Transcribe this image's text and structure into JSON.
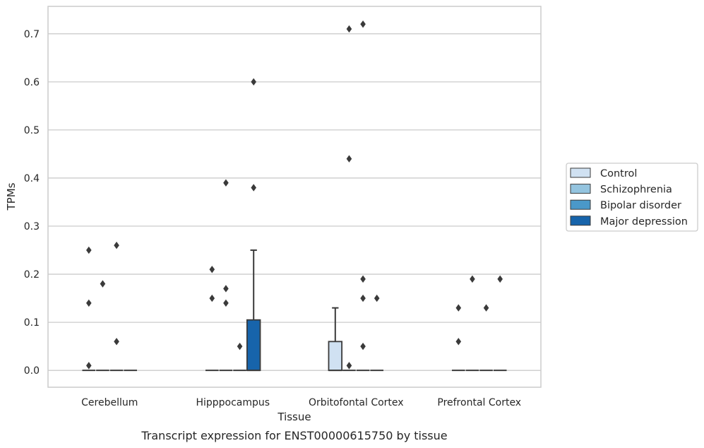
{
  "caption": "Transcript expression for ENST00000615750 by tissue",
  "chart_data": {
    "type": "box",
    "xlabel": "Tissue",
    "ylabel": "TPMs",
    "ylim": [
      -0.035,
      0.757
    ],
    "yticks": [
      0.0,
      0.1,
      0.2,
      0.3,
      0.4,
      0.5,
      0.6,
      0.7
    ],
    "ytick_labels": [
      "0.0",
      "0.1",
      "0.2",
      "0.3",
      "0.4",
      "0.5",
      "0.6",
      "0.7"
    ],
    "grid": "horizontal",
    "legend_position": "right",
    "categories": [
      "Cerebellum",
      "Hipppocampus",
      "Orbitofontal Cortex",
      "Prefrontal Cortex"
    ],
    "series": [
      {
        "name": "Control",
        "color": "#d0e1f2",
        "boxes": [
          {
            "category": "Cerebellum",
            "q1": 0.0,
            "median": 0.0,
            "q3": 0.0,
            "whisker_low": 0.0,
            "whisker_high": 0.0,
            "outliers": [
              0.25,
              0.14,
              0.01
            ]
          },
          {
            "category": "Hipppocampus",
            "q1": 0.0,
            "median": 0.0,
            "q3": 0.0,
            "whisker_low": 0.0,
            "whisker_high": 0.0,
            "outliers": [
              0.21,
              0.15
            ]
          },
          {
            "category": "Orbitofontal Cortex",
            "q1": 0.0,
            "median": 0.0,
            "q3": 0.06,
            "whisker_low": 0.0,
            "whisker_high": 0.13,
            "outliers": []
          },
          {
            "category": "Prefrontal Cortex",
            "q1": 0.0,
            "median": 0.0,
            "q3": 0.0,
            "whisker_low": 0.0,
            "whisker_high": 0.0,
            "outliers": [
              0.13,
              0.06
            ]
          }
        ]
      },
      {
        "name": "Schizophrenia",
        "color": "#94c4df",
        "boxes": [
          {
            "category": "Cerebellum",
            "q1": 0.0,
            "median": 0.0,
            "q3": 0.0,
            "whisker_low": 0.0,
            "whisker_high": 0.0,
            "outliers": [
              0.18
            ]
          },
          {
            "category": "Hipppocampus",
            "q1": 0.0,
            "median": 0.0,
            "q3": 0.0,
            "whisker_low": 0.0,
            "whisker_high": 0.0,
            "outliers": [
              0.39,
              0.17,
              0.14
            ]
          },
          {
            "category": "Orbitofontal Cortex",
            "q1": 0.0,
            "median": 0.0,
            "q3": 0.0,
            "whisker_low": 0.0,
            "whisker_high": 0.0,
            "outliers": [
              0.71,
              0.44,
              0.01
            ]
          },
          {
            "category": "Prefrontal Cortex",
            "q1": 0.0,
            "median": 0.0,
            "q3": 0.0,
            "whisker_low": 0.0,
            "whisker_high": 0.0,
            "outliers": [
              0.19
            ]
          }
        ]
      },
      {
        "name": "Bipolar disorder",
        "color": "#4a98c9",
        "boxes": [
          {
            "category": "Cerebellum",
            "q1": 0.0,
            "median": 0.0,
            "q3": 0.0,
            "whisker_low": 0.0,
            "whisker_high": 0.0,
            "outliers": [
              0.26,
              0.06
            ]
          },
          {
            "category": "Hipppocampus",
            "q1": 0.0,
            "median": 0.0,
            "q3": 0.0,
            "whisker_low": 0.0,
            "whisker_high": 0.0,
            "outliers": [
              0.05
            ]
          },
          {
            "category": "Orbitofontal Cortex",
            "q1": 0.0,
            "median": 0.0,
            "q3": 0.0,
            "whisker_low": 0.0,
            "whisker_high": 0.0,
            "outliers": [
              0.72,
              0.15,
              0.19,
              0.05
            ]
          },
          {
            "category": "Prefrontal Cortex",
            "q1": 0.0,
            "median": 0.0,
            "q3": 0.0,
            "whisker_low": 0.0,
            "whisker_high": 0.0,
            "outliers": [
              0.13
            ]
          }
        ]
      },
      {
        "name": "Major depression",
        "color": "#1764ab",
        "boxes": [
          {
            "category": "Cerebellum",
            "q1": 0.0,
            "median": 0.0,
            "q3": 0.0,
            "whisker_low": 0.0,
            "whisker_high": 0.0,
            "outliers": []
          },
          {
            "category": "Hipppocampus",
            "q1": 0.0,
            "median": 0.0,
            "q3": 0.105,
            "whisker_low": 0.0,
            "whisker_high": 0.25,
            "outliers": [
              0.6,
              0.38
            ]
          },
          {
            "category": "Orbitofontal Cortex",
            "q1": 0.0,
            "median": 0.0,
            "q3": 0.0,
            "whisker_low": 0.0,
            "whisker_high": 0.0,
            "outliers": [
              0.15
            ]
          },
          {
            "category": "Prefrontal Cortex",
            "q1": 0.0,
            "median": 0.0,
            "q3": 0.0,
            "whisker_low": 0.0,
            "whisker_high": 0.0,
            "outliers": [
              0.19
            ]
          }
        ]
      }
    ]
  }
}
